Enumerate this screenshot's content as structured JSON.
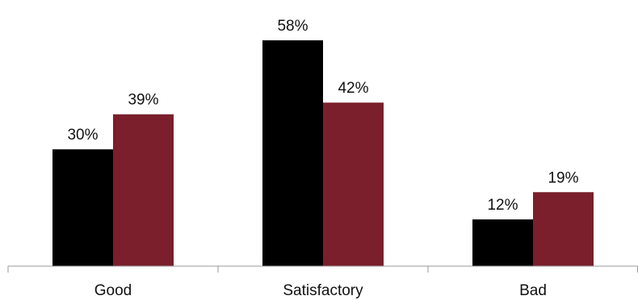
{
  "chart_data": {
    "type": "bar",
    "categories": [
      "Good",
      "Satisfactory",
      "Bad"
    ],
    "series": [
      {
        "values": [
          30,
          58,
          12
        ],
        "labels": [
          "30%",
          "58%",
          "12%"
        ],
        "color": "#000000"
      },
      {
        "values": [
          39,
          42,
          19
        ],
        "labels": [
          "39%",
          "42%",
          "19%"
        ],
        "color": "#7a1f2b"
      }
    ],
    "title": "",
    "xlabel": "",
    "ylabel": "",
    "ylim": [
      0,
      65
    ],
    "grid": false,
    "legend": "none",
    "axis_color": "#999999"
  }
}
